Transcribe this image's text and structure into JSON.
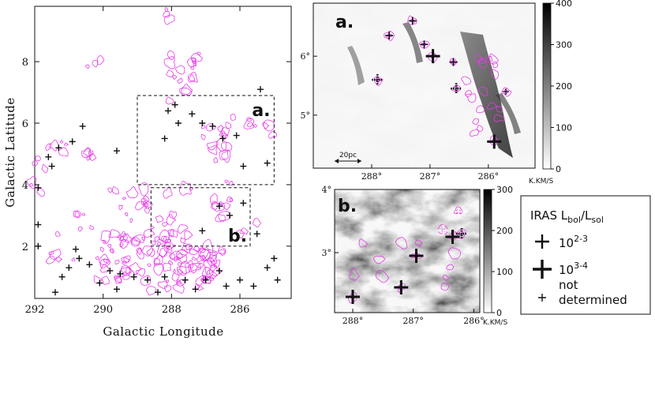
{
  "chart_data": [
    {
      "type": "scatter",
      "panel": "main",
      "xlabel": "Galactic Longitude",
      "ylabel": "Galactic Latitude",
      "xlim": [
        292,
        284.5
      ],
      "ylim": [
        0.3,
        9.8
      ],
      "x_ticks": [
        "292",
        "290",
        "288",
        "286"
      ],
      "y_ticks": [
        "2",
        "4",
        "6",
        "8"
      ],
      "x_tick_values": [
        292,
        290,
        288,
        286
      ],
      "y_tick_values": [
        2,
        4,
        6,
        8
      ],
      "boxes": [
        {
          "label": "a.",
          "lon": [
            289,
            285
          ],
          "lat": [
            4.0,
            6.9
          ]
        },
        {
          "label": "b.",
          "lon": [
            288.6,
            285.7
          ],
          "lat": [
            2.0,
            3.9
          ]
        }
      ],
      "sources": [
        {
          "l": 288.1,
          "b": 6.4
        },
        {
          "l": 287.9,
          "b": 6.6
        },
        {
          "l": 287.4,
          "b": 6.3
        },
        {
          "l": 286.8,
          "b": 5.9
        },
        {
          "l": 286.5,
          "b": 5.5
        },
        {
          "l": 285.4,
          "b": 7.1
        },
        {
          "l": 285.2,
          "b": 4.7
        },
        {
          "l": 287.8,
          "b": 6.0
        },
        {
          "l": 287.1,
          "b": 6.0
        },
        {
          "l": 286.1,
          "b": 5.6
        },
        {
          "l": 285.9,
          "b": 4.6
        },
        {
          "l": 290.6,
          "b": 5.9
        },
        {
          "l": 290.9,
          "b": 5.4
        },
        {
          "l": 291.3,
          "b": 5.2
        },
        {
          "l": 289.6,
          "b": 5.1
        },
        {
          "l": 288.2,
          "b": 5.5
        },
        {
          "l": 291.5,
          "b": 4.6
        },
        {
          "l": 291.6,
          "b": 4.9
        },
        {
          "l": 291.9,
          "b": 3.9
        },
        {
          "l": 291.9,
          "b": 2.7
        },
        {
          "l": 291.9,
          "b": 2.0
        },
        {
          "l": 286.6,
          "b": 3.3
        },
        {
          "l": 286.3,
          "b": 3.0
        },
        {
          "l": 285.9,
          "b": 3.4
        },
        {
          "l": 287.1,
          "b": 2.5
        },
        {
          "l": 285.5,
          "b": 2.4
        },
        {
          "l": 290.8,
          "b": 1.9
        },
        {
          "l": 290.7,
          "b": 1.6
        },
        {
          "l": 291.0,
          "b": 1.3
        },
        {
          "l": 290.4,
          "b": 1.4
        },
        {
          "l": 289.8,
          "b": 1.2
        },
        {
          "l": 289.5,
          "b": 1.1
        },
        {
          "l": 289.1,
          "b": 1.0
        },
        {
          "l": 288.7,
          "b": 0.9
        },
        {
          "l": 288.2,
          "b": 1.0
        },
        {
          "l": 287.6,
          "b": 0.9
        },
        {
          "l": 287.0,
          "b": 0.9
        },
        {
          "l": 286.6,
          "b": 1.2
        },
        {
          "l": 286.0,
          "b": 0.9
        },
        {
          "l": 285.6,
          "b": 0.7
        },
        {
          "l": 285.2,
          "b": 1.3
        },
        {
          "l": 284.9,
          "b": 0.9
        },
        {
          "l": 289.6,
          "b": 0.6
        },
        {
          "l": 290.1,
          "b": 0.8
        },
        {
          "l": 291.2,
          "b": 1.0
        },
        {
          "l": 288.4,
          "b": 0.5
        },
        {
          "l": 287.3,
          "b": 0.6
        },
        {
          "l": 286.4,
          "b": 0.7
        },
        {
          "l": 285.0,
          "b": 1.6
        },
        {
          "l": 291.4,
          "b": 0.5
        }
      ]
    },
    {
      "type": "heatmap",
      "panel": "a.",
      "x_ticks": [
        "288°",
        "287°",
        "286°"
      ],
      "x_tick_values": [
        288,
        287,
        286
      ],
      "y_ticks": [
        "5°",
        "6°"
      ],
      "y_tick_values": [
        5,
        6
      ],
      "xlim": [
        289,
        285.2
      ],
      "ylim": [
        4.1,
        6.9
      ],
      "colorbar": {
        "min": 0,
        "max": 400,
        "ticks": [
          "0",
          "100",
          "200",
          "300",
          "400"
        ],
        "tick_values": [
          0,
          100,
          200,
          300,
          400
        ],
        "unit": "K.KM/S"
      },
      "scalebar": "20pc",
      "sources": [
        {
          "l": 287.7,
          "b": 6.35,
          "cls": "2-3"
        },
        {
          "l": 287.3,
          "b": 6.6,
          "cls": "2-3"
        },
        {
          "l": 287.1,
          "b": 6.2,
          "cls": "2-3"
        },
        {
          "l": 286.6,
          "b": 5.9,
          "cls": "2-3"
        },
        {
          "l": 286.95,
          "b": 6.0,
          "cls": "3-4"
        },
        {
          "l": 287.9,
          "b": 5.6,
          "cls": "dotted"
        },
        {
          "l": 286.55,
          "b": 5.45,
          "cls": "dotted"
        },
        {
          "l": 285.9,
          "b": 4.55,
          "cls": "3-4"
        },
        {
          "l": 285.7,
          "b": 5.4,
          "cls": "nd"
        }
      ]
    },
    {
      "type": "heatmap",
      "panel": "b.",
      "x_ticks": [
        "288°",
        "287°",
        "286°"
      ],
      "x_tick_values": [
        288,
        287,
        286
      ],
      "y_ticks": [
        "3°",
        "4°"
      ],
      "y_tick_values": [
        3,
        4
      ],
      "xlim": [
        288.3,
        285.9
      ],
      "ylim": [
        2.05,
        4.0
      ],
      "colorbar": {
        "min": 0,
        "max": 300,
        "ticks": [
          "0",
          "100",
          "200",
          "300"
        ],
        "tick_values": [
          0,
          100,
          200,
          300
        ],
        "unit": "K.KM/S"
      },
      "sources": [
        {
          "l": 288.0,
          "b": 2.3,
          "cls": "3-4"
        },
        {
          "l": 287.2,
          "b": 2.45,
          "cls": "3-4"
        },
        {
          "l": 286.95,
          "b": 2.95,
          "cls": "3-4"
        },
        {
          "l": 286.35,
          "b": 3.25,
          "cls": "3-4"
        },
        {
          "l": 286.5,
          "b": 3.35,
          "cls": "dotted-white"
        },
        {
          "l": 286.2,
          "b": 3.3,
          "cls": "dotted"
        },
        {
          "l": 286.25,
          "b": 3.65,
          "cls": "white"
        }
      ]
    }
  ],
  "legend": {
    "title_main": "IRAS L",
    "title_sub1": "bol",
    "title_mid": "/L",
    "title_sub2": "sol",
    "entries": [
      {
        "base": "10",
        "sup": "2-3"
      },
      {
        "base": "10",
        "sup": "3-4"
      },
      {
        "line1": "not",
        "line2": "determined"
      }
    ]
  },
  "colors": {
    "contour": "#e83be8",
    "ink": "#111111"
  }
}
